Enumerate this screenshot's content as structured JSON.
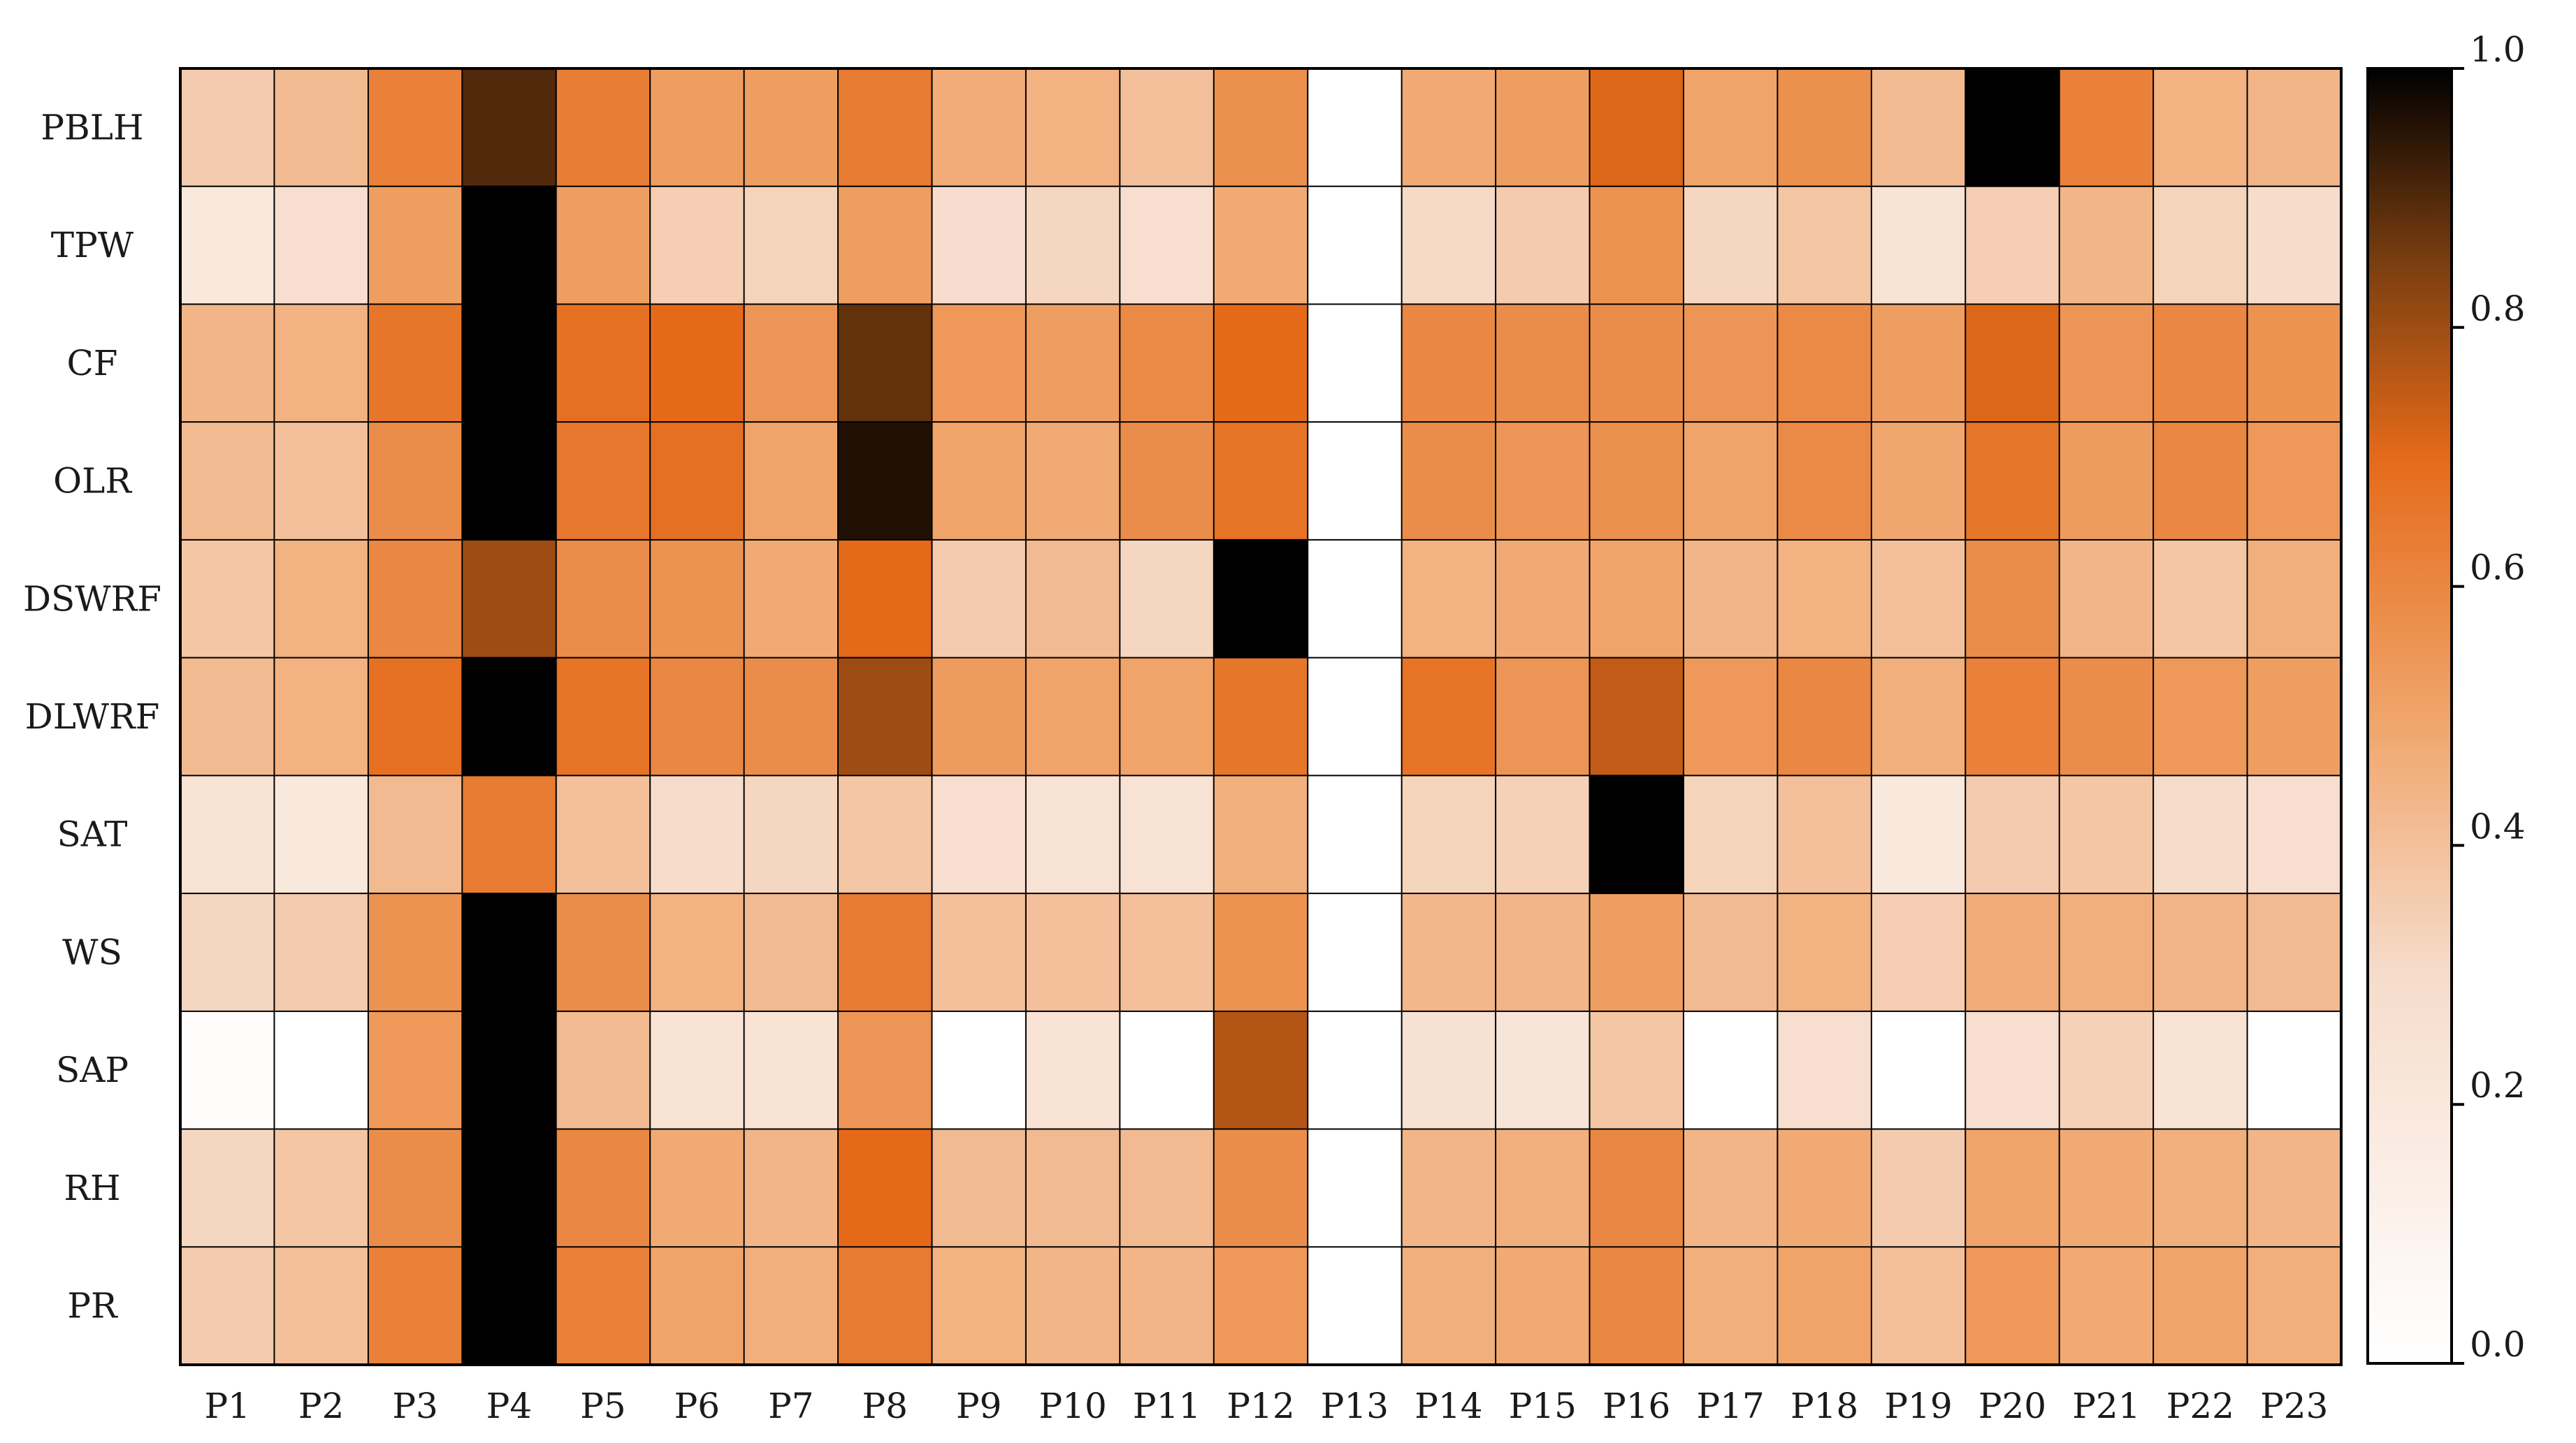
{
  "chart_data": {
    "type": "heatmap",
    "title": "",
    "xlabel": "",
    "ylabel": "",
    "rows": [
      "PBLH",
      "TPW",
      "CF",
      "OLR",
      "DSWRF",
      "DLWRF",
      "SAT",
      "WS",
      "SAP",
      "RH",
      "PR"
    ],
    "columns": [
      "P1",
      "P2",
      "P3",
      "P4",
      "P5",
      "P6",
      "P7",
      "P8",
      "P9",
      "P10",
      "P11",
      "P12",
      "P13",
      "P14",
      "P15",
      "P16",
      "P17",
      "P18",
      "P19",
      "P20",
      "P21",
      "P22",
      "P23"
    ],
    "values": [
      [
        0.36,
        0.42,
        0.62,
        0.9,
        0.63,
        0.52,
        0.52,
        0.64,
        0.47,
        0.45,
        0.4,
        0.57,
        0.0,
        0.48,
        0.52,
        0.71,
        0.5,
        0.57,
        0.42,
        1.0,
        0.62,
        0.45,
        0.44
      ],
      [
        0.2,
        0.28,
        0.52,
        1.0,
        0.52,
        0.35,
        0.33,
        0.52,
        0.29,
        0.32,
        0.28,
        0.48,
        0.0,
        0.31,
        0.36,
        0.56,
        0.32,
        0.38,
        0.24,
        0.35,
        0.44,
        0.33,
        0.3
      ],
      [
        0.44,
        0.45,
        0.66,
        1.0,
        0.68,
        0.7,
        0.55,
        0.88,
        0.54,
        0.52,
        0.59,
        0.7,
        0.0,
        0.6,
        0.58,
        0.58,
        0.55,
        0.59,
        0.52,
        0.71,
        0.55,
        0.6,
        0.56
      ],
      [
        0.42,
        0.4,
        0.58,
        1.0,
        0.65,
        0.68,
        0.5,
        0.96,
        0.5,
        0.48,
        0.58,
        0.67,
        0.0,
        0.58,
        0.55,
        0.57,
        0.5,
        0.59,
        0.49,
        0.66,
        0.53,
        0.6,
        0.54
      ],
      [
        0.38,
        0.45,
        0.6,
        0.8,
        0.58,
        0.56,
        0.48,
        0.7,
        0.36,
        0.42,
        0.32,
        1.0,
        0.0,
        0.45,
        0.48,
        0.5,
        0.44,
        0.45,
        0.4,
        0.58,
        0.44,
        0.38,
        0.46
      ],
      [
        0.42,
        0.45,
        0.68,
        1.0,
        0.67,
        0.6,
        0.58,
        0.8,
        0.53,
        0.5,
        0.5,
        0.66,
        0.0,
        0.67,
        0.55,
        0.75,
        0.54,
        0.6,
        0.46,
        0.62,
        0.58,
        0.54,
        0.52
      ],
      [
        0.24,
        0.2,
        0.42,
        0.64,
        0.4,
        0.3,
        0.32,
        0.38,
        0.28,
        0.25,
        0.25,
        0.46,
        0.0,
        0.33,
        0.34,
        1.0,
        0.33,
        0.4,
        0.2,
        0.36,
        0.38,
        0.3,
        0.28
      ],
      [
        0.32,
        0.36,
        0.56,
        1.0,
        0.58,
        0.45,
        0.42,
        0.64,
        0.4,
        0.4,
        0.4,
        0.56,
        0.0,
        0.43,
        0.44,
        0.52,
        0.42,
        0.45,
        0.35,
        0.47,
        0.46,
        0.44,
        0.42
      ],
      [
        0.02,
        0.0,
        0.54,
        1.0,
        0.42,
        0.24,
        0.24,
        0.55,
        0.0,
        0.24,
        0.0,
        0.77,
        0.0,
        0.26,
        0.22,
        0.38,
        0.0,
        0.28,
        0.0,
        0.28,
        0.34,
        0.24,
        0.0
      ],
      [
        0.32,
        0.38,
        0.58,
        1.0,
        0.6,
        0.48,
        0.44,
        0.7,
        0.42,
        0.42,
        0.42,
        0.58,
        0.0,
        0.44,
        0.46,
        0.6,
        0.44,
        0.48,
        0.36,
        0.5,
        0.48,
        0.46,
        0.44
      ],
      [
        0.36,
        0.4,
        0.62,
        1.0,
        0.62,
        0.5,
        0.46,
        0.64,
        0.45,
        0.44,
        0.44,
        0.54,
        0.0,
        0.46,
        0.48,
        0.6,
        0.46,
        0.5,
        0.4,
        0.54,
        0.48,
        0.5,
        0.46
      ]
    ],
    "colorbar": {
      "min": 0.0,
      "max": 1.0,
      "ticks": [
        "0.0",
        "0.2",
        "0.4",
        "0.6",
        "0.8",
        "1.0"
      ],
      "colormap": "Oranges (white → orange → black)"
    },
    "grid": true,
    "legend": "colorbar-right"
  },
  "colors": {
    "low": "#ffffff",
    "mid_light": "#f2b88a",
    "mid": "#e8762c",
    "mid_dark": "#c45a12",
    "high": "#000000",
    "grid_line": "#000000"
  }
}
